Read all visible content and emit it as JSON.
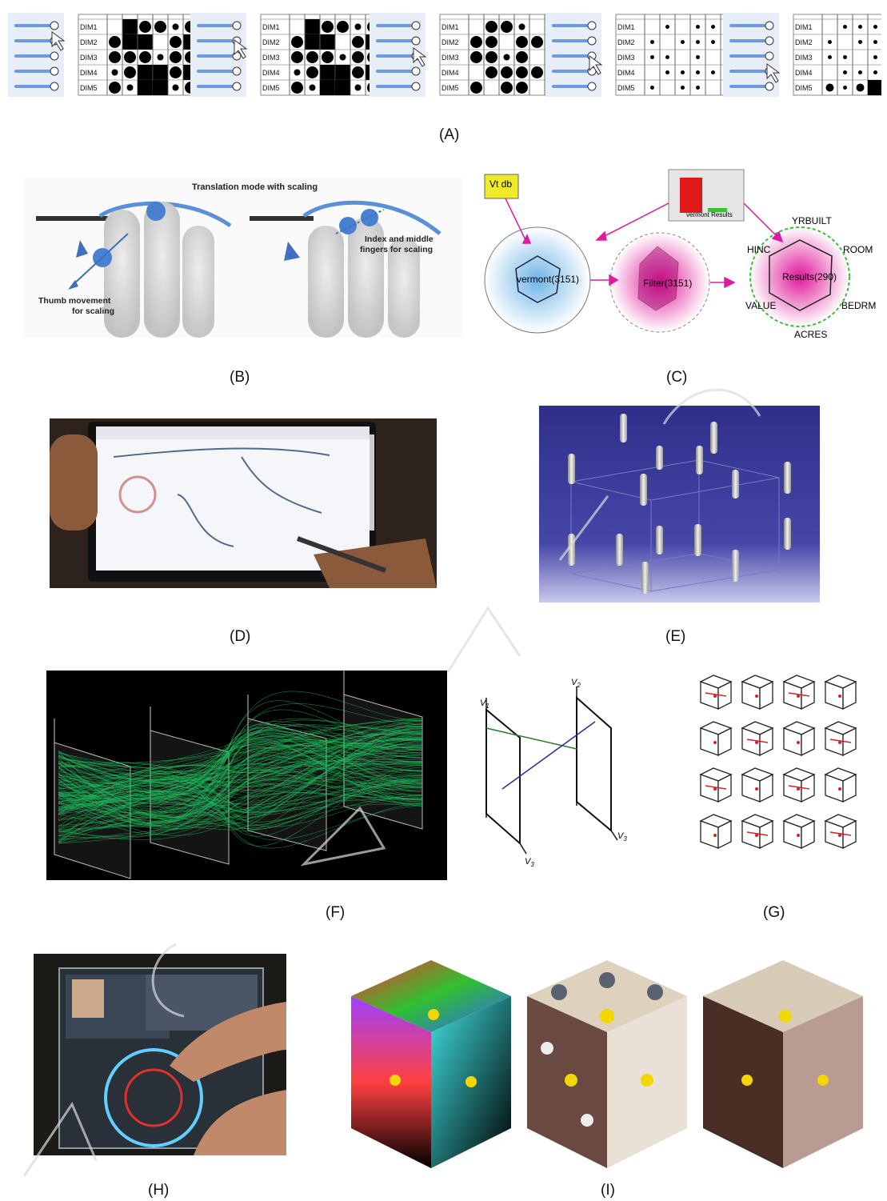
{
  "captions": {
    "A": "(A)",
    "B": "(B)",
    "C": "(C)",
    "D": "(D)",
    "E": "(E)",
    "F": "(F)",
    "G": "(G)",
    "H": "(H)",
    "I": "(I)"
  },
  "panel_a": {
    "dims": [
      "DIM1",
      "DIM2",
      "DIM3",
      "DIM4",
      "DIM5"
    ],
    "grids": [
      {
        "dims": [
          [
            0,
            "S",
            2,
            2,
            1,
            2
          ],
          [
            2,
            "S",
            "S",
            0,
            2,
            "S"
          ],
          [
            2,
            2,
            2,
            1,
            2,
            2
          ],
          [
            1,
            2,
            "S",
            "S",
            2,
            "S"
          ],
          [
            2,
            1,
            "S",
            "S",
            1,
            2
          ]
        ],
        "mode": "dense"
      },
      {
        "dims": [
          [
            0,
            "S",
            2,
            2,
            1,
            2
          ],
          [
            2,
            "S",
            "S",
            0,
            2,
            "S"
          ],
          [
            2,
            2,
            2,
            1,
            2,
            2
          ],
          [
            1,
            2,
            "S",
            "S",
            2,
            "S"
          ],
          [
            2,
            1,
            "S",
            "S",
            1,
            2
          ]
        ],
        "mode": "dense"
      },
      {
        "dims": [
          [
            0,
            2,
            2,
            1,
            0,
            2
          ],
          [
            2,
            2,
            0,
            2,
            2,
            2
          ],
          [
            2,
            2,
            1,
            2,
            0,
            2
          ],
          [
            0,
            2,
            2,
            2,
            2,
            2
          ],
          [
            2,
            0,
            2,
            2,
            0,
            2
          ]
        ],
        "mode": "dots"
      },
      {
        "dims": [
          [
            0,
            1,
            0,
            1,
            1,
            1
          ],
          [
            1,
            0,
            1,
            1,
            1,
            1
          ],
          [
            1,
            1,
            0,
            1,
            0,
            1
          ],
          [
            0,
            1,
            1,
            1,
            1,
            1
          ],
          [
            1,
            0,
            1,
            1,
            0,
            1
          ]
        ],
        "mode": "small"
      },
      {
        "dims": [
          [
            0,
            1,
            1,
            1,
            1,
            1
          ],
          [
            1,
            0,
            1,
            1,
            1,
            1
          ],
          [
            1,
            1,
            0,
            1,
            0,
            1
          ],
          [
            0,
            1,
            1,
            1,
            1,
            1
          ],
          [
            2,
            1,
            2,
            "S",
            1,
            1
          ]
        ],
        "mode": "small"
      }
    ]
  },
  "panel_b": {
    "title": "Translation mode with scaling",
    "thumb_label_1": "Thumb movement",
    "thumb_label_2": "for scaling",
    "index_label_1": "Index and middle",
    "index_label_2": "fingers for scaling"
  },
  "panel_c": {
    "source_node": "Vt db",
    "result_popup": "vermont Results",
    "node1": "vermont(3151)",
    "node2": "Filter(3151)",
    "node3": "Results(290)",
    "axis_labels": [
      "YRBUILT",
      "ROOM",
      "BEDRM",
      "ACRES",
      "VALUE",
      "HINC"
    ],
    "pink": "#e0189a",
    "blue": "#7fc0e8"
  },
  "panel_f": {
    "axis_v1": "V",
    "axis_v1_sub": "1",
    "axis_v2": "V",
    "axis_v2_sub": "2",
    "axis_v3a": "V",
    "axis_v3a_sub": "3",
    "axis_v3b": "V",
    "axis_v3b_sub": "3"
  }
}
